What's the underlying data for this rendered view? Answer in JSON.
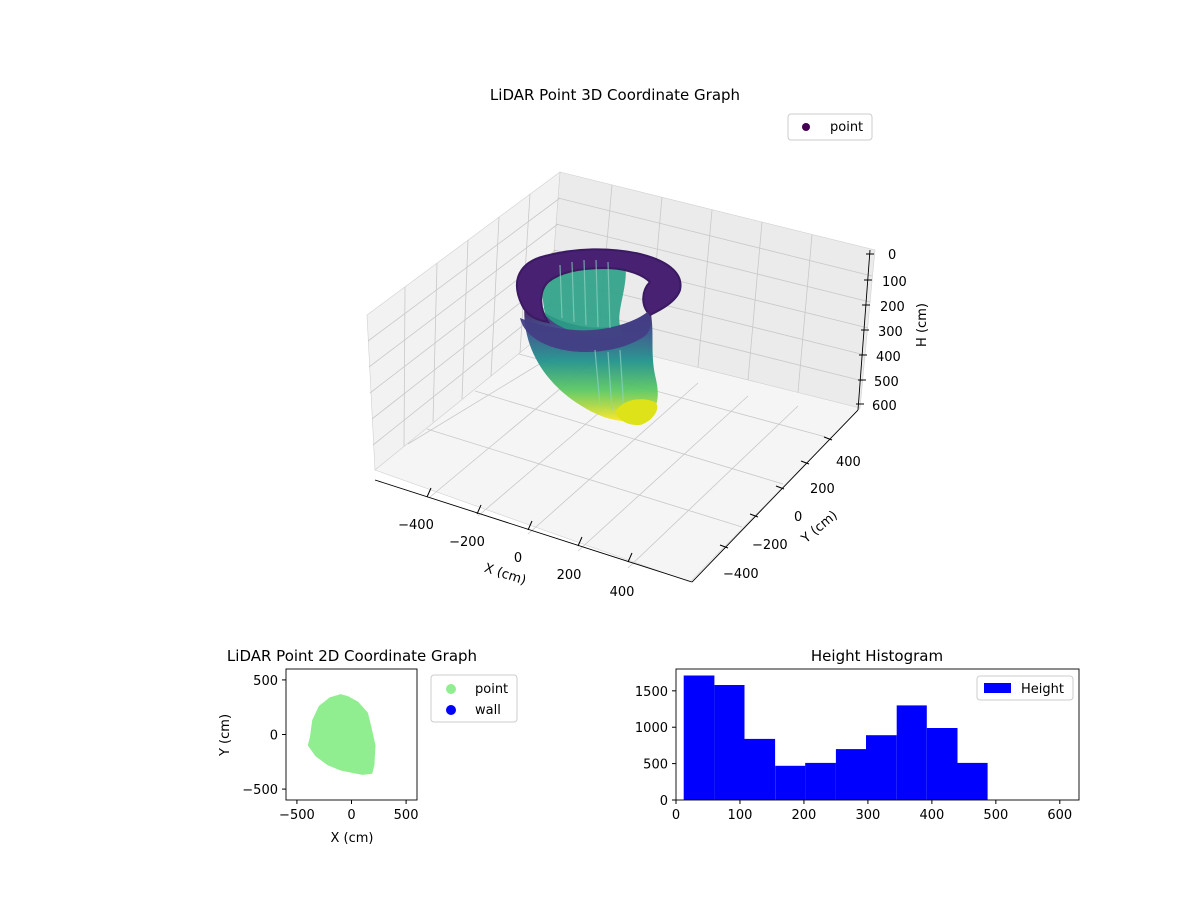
{
  "colors": {
    "viridis_top": "#440154",
    "viridis_mid": "#21918c",
    "viridis_bottom": "#fde725",
    "point_2d": "#90ee90",
    "wall_2d": "#0000ff",
    "histogram": "#0000ff"
  },
  "chart_data": [
    {
      "id": "lidar3d",
      "type": "scatter",
      "projection": "3d",
      "title": "LiDAR Point 3D Coordinate Graph",
      "xlabel": "X (cm)",
      "ylabel": "Y (cm)",
      "zlabel": "H (cm)",
      "xticks": [
        "−400",
        "−200",
        "0",
        "200",
        "400"
      ],
      "yticks": [
        "−400",
        "−200",
        "0",
        "200",
        "400"
      ],
      "zticks": [
        "0",
        "100",
        "200",
        "300",
        "400",
        "500",
        "600"
      ],
      "z_inverted": true,
      "colormap": "viridis",
      "legend": {
        "entries": [
          "point"
        ],
        "placement": "upper-right"
      },
      "grid": true,
      "description_of_shape": "curved wall of points forming a bowl/rim shape, dark purple near H=0 shading to yellow near H=600"
    },
    {
      "id": "lidar2d",
      "type": "scatter",
      "title": "LiDAR Point 2D Coordinate Graph",
      "xlabel": "X (cm)",
      "ylabel": "Y (cm)",
      "xlim": [
        -600,
        600
      ],
      "ylim": [
        -600,
        600
      ],
      "xticks": [
        "−500",
        "0",
        "500"
      ],
      "yticks": [
        "−500",
        "0",
        "500"
      ],
      "series": [
        {
          "name": "point",
          "color": "#90ee90",
          "outline": [
            [
              -380,
              -20
            ],
            [
              -360,
              130
            ],
            [
              -300,
              260
            ],
            [
              -200,
              340
            ],
            [
              -100,
              370
            ],
            [
              -30,
              350
            ],
            [
              60,
              300
            ],
            [
              150,
              200
            ],
            [
              180,
              80
            ],
            [
              220,
              -100
            ],
            [
              210,
              -280
            ],
            [
              190,
              -360
            ],
            [
              100,
              -370
            ],
            [
              0,
              -350
            ],
            [
              -100,
              -330
            ],
            [
              -220,
              -280
            ],
            [
              -330,
              -200
            ],
            [
              -400,
              -100
            ]
          ]
        },
        {
          "name": "wall",
          "color": "#0000ff",
          "points": []
        }
      ],
      "legend": {
        "entries": [
          "point",
          "wall"
        ],
        "placement": "outside-right"
      }
    },
    {
      "id": "histogram",
      "type": "bar",
      "title": "Height Histogram",
      "xlim": [
        0,
        630
      ],
      "ylim": [
        0,
        1800
      ],
      "xticks": [
        "0",
        "100",
        "200",
        "300",
        "400",
        "500",
        "600"
      ],
      "yticks": [
        "0",
        "500",
        "1000",
        "1500"
      ],
      "bins": [
        {
          "x0": 12,
          "x1": 60,
          "value": 1710
        },
        {
          "x0": 60,
          "x1": 107,
          "value": 1580
        },
        {
          "x0": 107,
          "x1": 155,
          "value": 840
        },
        {
          "x0": 155,
          "x1": 202,
          "value": 470
        },
        {
          "x0": 202,
          "x1": 250,
          "value": 510
        },
        {
          "x0": 250,
          "x1": 297,
          "value": 700
        },
        {
          "x0": 297,
          "x1": 345,
          "value": 890
        },
        {
          "x0": 345,
          "x1": 392,
          "value": 1300
        },
        {
          "x0": 392,
          "x1": 440,
          "value": 990
        },
        {
          "x0": 440,
          "x1": 487,
          "value": 510
        }
      ],
      "legend": {
        "entries": [
          "Height"
        ],
        "placement": "upper-right"
      }
    }
  ]
}
